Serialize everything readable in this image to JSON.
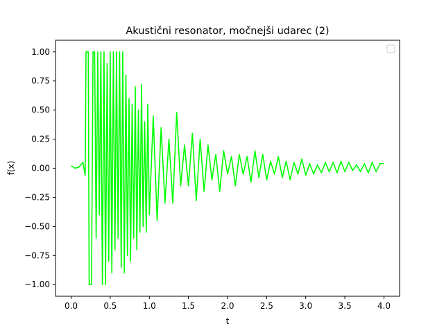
{
  "chart_data": {
    "type": "line",
    "title": "Akustični resonator, močnejši udarec (2)",
    "xlabel": "t",
    "ylabel": "f(x)",
    "xlim": [
      -0.2,
      4.2
    ],
    "ylim": [
      -1.1,
      1.1
    ],
    "xticks": [
      0.0,
      0.5,
      1.0,
      1.5,
      2.0,
      2.5,
      3.0,
      3.5,
      4.0
    ],
    "xtick_labels": [
      "0.0",
      "0.5",
      "1.0",
      "1.5",
      "2.0",
      "2.5",
      "3.0",
      "3.5",
      "4.0"
    ],
    "yticks": [
      -1.0,
      -0.75,
      -0.5,
      -0.25,
      0.0,
      0.25,
      0.5,
      0.75,
      1.0
    ],
    "ytick_labels": [
      "−1.00",
      "−0.75",
      "−0.50",
      "−0.25",
      "0.00",
      "0.25",
      "0.50",
      "0.75",
      "1.00"
    ],
    "grid": false,
    "legend": {
      "placement": "upper-right",
      "entries": []
    },
    "series": [
      {
        "color": "#00ff00",
        "x": [
          0.0,
          0.05,
          0.1,
          0.15,
          0.18,
          0.19,
          0.22,
          0.23,
          0.26,
          0.28,
          0.3,
          0.32,
          0.34,
          0.36,
          0.38,
          0.4,
          0.42,
          0.44,
          0.46,
          0.48,
          0.5,
          0.52,
          0.54,
          0.56,
          0.58,
          0.6,
          0.62,
          0.64,
          0.66,
          0.68,
          0.7,
          0.72,
          0.74,
          0.76,
          0.78,
          0.8,
          0.82,
          0.84,
          0.86,
          0.88,
          0.9,
          0.92,
          0.94,
          0.96,
          0.98,
          1.0,
          1.05,
          1.1,
          1.15,
          1.2,
          1.25,
          1.3,
          1.35,
          1.4,
          1.45,
          1.5,
          1.55,
          1.6,
          1.65,
          1.7,
          1.75,
          1.8,
          1.85,
          1.9,
          1.95,
          2.0,
          2.05,
          2.1,
          2.15,
          2.2,
          2.25,
          2.3,
          2.35,
          2.4,
          2.45,
          2.5,
          2.55,
          2.6,
          2.65,
          2.7,
          2.75,
          2.8,
          2.85,
          2.9,
          2.95,
          3.0,
          3.05,
          3.1,
          3.15,
          3.2,
          3.25,
          3.3,
          3.35,
          3.4,
          3.45,
          3.5,
          3.55,
          3.6,
          3.65,
          3.7,
          3.75,
          3.8,
          3.85,
          3.9,
          3.95,
          4.0
        ],
        "y": [
          0.02,
          0.0,
          0.01,
          0.05,
          -0.06,
          1.0,
          1.0,
          -1.0,
          -1.0,
          1.0,
          1.0,
          -0.6,
          1.0,
          -0.4,
          1.0,
          -1.0,
          1.0,
          -1.0,
          0.9,
          -0.8,
          1.0,
          -0.9,
          1.0,
          -0.7,
          1.0,
          -0.6,
          1.0,
          -0.85,
          1.0,
          -0.9,
          0.8,
          -0.75,
          0.6,
          -0.8,
          0.55,
          -0.6,
          0.7,
          -0.7,
          0.5,
          -0.55,
          0.72,
          -0.5,
          0.4,
          -0.55,
          0.55,
          -0.4,
          0.45,
          -0.45,
          0.35,
          -0.3,
          0.25,
          -0.3,
          0.48,
          -0.15,
          0.2,
          -0.15,
          0.3,
          -0.28,
          0.25,
          -0.2,
          0.2,
          -0.1,
          0.12,
          -0.2,
          0.15,
          -0.05,
          0.1,
          -0.15,
          0.12,
          -0.05,
          0.1,
          -0.12,
          0.15,
          -0.08,
          0.12,
          -0.1,
          0.06,
          -0.05,
          0.1,
          -0.08,
          0.06,
          -0.1,
          0.05,
          -0.05,
          0.08,
          -0.06,
          0.04,
          -0.05,
          0.03,
          -0.04,
          0.05,
          -0.03,
          0.05,
          -0.04,
          0.06,
          -0.03,
          0.05,
          -0.02,
          0.03,
          -0.03,
          0.04,
          -0.04,
          0.05,
          -0.03,
          0.04,
          0.04
        ]
      }
    ]
  }
}
